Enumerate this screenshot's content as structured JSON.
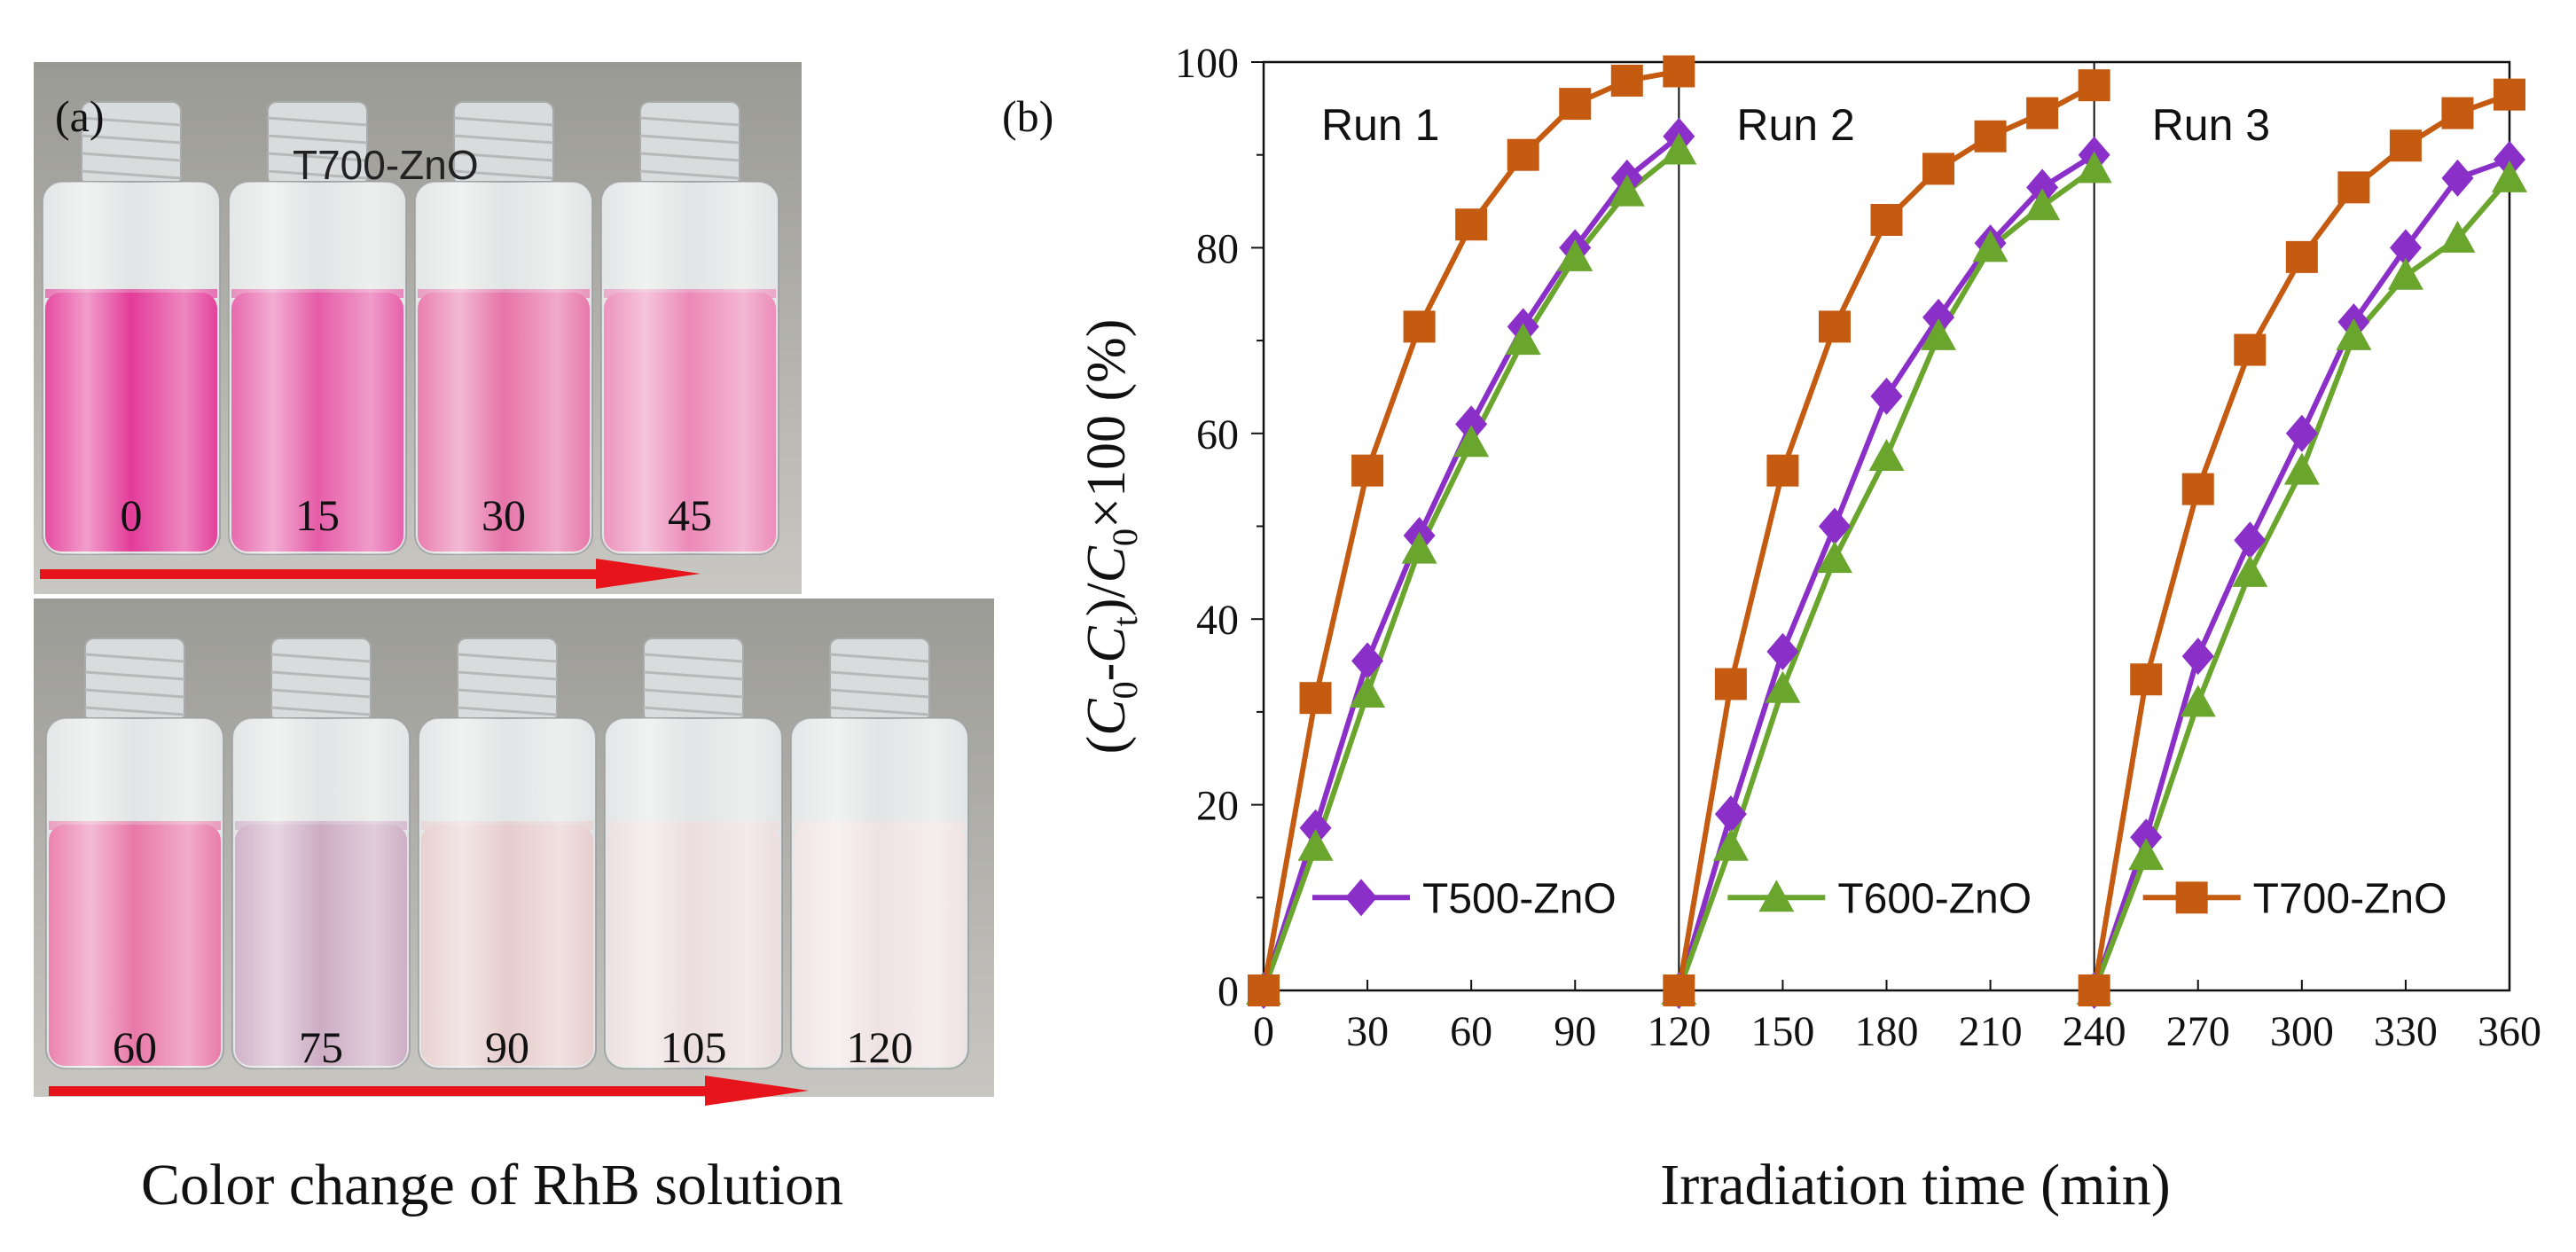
{
  "panel_a": {
    "label": "(a)",
    "sample_label": "T700-ZnO",
    "caption": "Color change of RhB solution",
    "colors": {
      "arrow": "#e8141b"
    },
    "top_row": [
      {
        "time": "0",
        "liquid_color": "#e0268d"
      },
      {
        "time": "15",
        "liquid_color": "#e34a9e"
      },
      {
        "time": "30",
        "liquid_color": "#e4649f"
      },
      {
        "time": "45",
        "liquid_color": "#ea7cb0"
      }
    ],
    "bottom_row": [
      {
        "time": "60",
        "liquid_color": "#e6699e"
      },
      {
        "time": "75",
        "liquid_color": "#c7a3bd"
      },
      {
        "time": "90",
        "liquid_color": "#e4c7c7"
      },
      {
        "time": "105",
        "liquid_color": "#ead9da"
      },
      {
        "time": "120",
        "liquid_color": "#eedfe0"
      }
    ]
  },
  "chart_data": {
    "type": "line",
    "panel_label": "(b)",
    "xlabel": "Irradiation time (min)",
    "ylabel_parts": {
      "open": "(",
      "c0": "C",
      "sub0": "0",
      "dash": "-",
      "ct": "C",
      "subt": "t",
      "mid": ")/",
      "c0b": "C",
      "sub0b": "0",
      "tail": "×100 (%)"
    },
    "xlim": [
      0,
      360
    ],
    "ylim": [
      0,
      100
    ],
    "xticks": [
      "0",
      "30",
      "60",
      "90",
      "120",
      "150",
      "180",
      "210",
      "240",
      "270",
      "300",
      "330",
      "360"
    ],
    "yticks": [
      "0",
      "20",
      "40",
      "60",
      "80",
      "100"
    ],
    "run_dividers": [
      120,
      240
    ],
    "run_labels": [
      {
        "text": "Run 1",
        "x": 10
      },
      {
        "text": "Run 2",
        "x": 130
      },
      {
        "text": "Run 3",
        "x": 250
      }
    ],
    "series": [
      {
        "name": "T500-ZnO",
        "color": "#8b2fc9",
        "marker": "diamond",
        "runs": [
          {
            "x": [
              0,
              15,
              30,
              45,
              60,
              75,
              90,
              105,
              120
            ],
            "y": [
              0,
              17.5,
              35.5,
              49,
              61,
              71.5,
              80,
              87.5,
              92
            ]
          },
          {
            "x": [
              120,
              135,
              150,
              165,
              180,
              195,
              210,
              225,
              240
            ],
            "y": [
              0,
              19,
              36.5,
              50,
              64,
              72.5,
              80.5,
              86.5,
              90
            ]
          },
          {
            "x": [
              240,
              255,
              270,
              285,
              300,
              315,
              330,
              345,
              360
            ],
            "y": [
              0,
              16.5,
              36,
              48.5,
              60,
              72,
              80,
              87.5,
              89.5
            ]
          }
        ]
      },
      {
        "name": "T600-ZnO",
        "color": "#6aa52e",
        "marker": "triangle",
        "runs": [
          {
            "x": [
              0,
              15,
              30,
              45,
              60,
              75,
              90,
              105,
              120
            ],
            "y": [
              0,
              15.5,
              32,
              47.5,
              59,
              70,
              79,
              86,
              90.5
            ]
          },
          {
            "x": [
              120,
              135,
              150,
              165,
              180,
              195,
              210,
              225,
              240
            ],
            "y": [
              0,
              15.5,
              32.5,
              46.5,
              57.5,
              70.5,
              80,
              84.5,
              88.5
            ]
          },
          {
            "x": [
              240,
              255,
              270,
              285,
              300,
              315,
              330,
              345,
              360
            ],
            "y": [
              0,
              14.5,
              31,
              45,
              56,
              70.5,
              77,
              81,
              87.5
            ]
          }
        ]
      },
      {
        "name": "T700-ZnO",
        "color": "#c55a11",
        "marker": "square",
        "runs": [
          {
            "x": [
              0,
              15,
              30,
              45,
              60,
              75,
              90,
              105,
              120
            ],
            "y": [
              0,
              31.5,
              56,
              71.5,
              82.5,
              90,
              95.5,
              98,
              99
            ]
          },
          {
            "x": [
              120,
              135,
              150,
              165,
              180,
              195,
              210,
              225,
              240
            ],
            "y": [
              0,
              33,
              56,
              71.5,
              83,
              88.5,
              92,
              94.5,
              97.5
            ]
          },
          {
            "x": [
              240,
              255,
              270,
              285,
              300,
              315,
              330,
              345,
              360
            ],
            "y": [
              0,
              33.5,
              54,
              69,
              79,
              86.5,
              91,
              94.5,
              96.5
            ]
          }
        ]
      }
    ],
    "legend": [
      {
        "name": "T500-ZnO",
        "run": 1
      },
      {
        "name": "T600-ZnO",
        "run": 2
      },
      {
        "name": "T700-ZnO",
        "run": 3
      }
    ]
  }
}
